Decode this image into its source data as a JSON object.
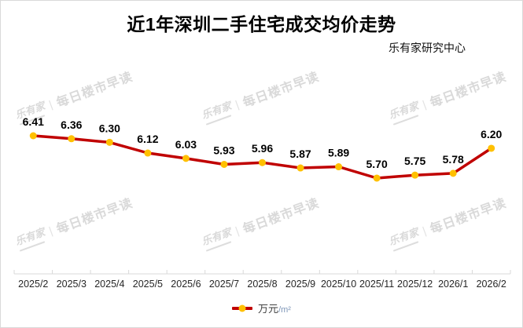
{
  "chart": {
    "title": "近1年深圳二手住宅成交均价走势",
    "source": "乐有家研究中心"
  },
  "legend": {
    "label": "万元/㎡",
    "prefix": "万元",
    "suffix": "/m²"
  },
  "watermark": {
    "logo": "乐有家",
    "divider": "|",
    "text": "每日楼市早读"
  },
  "chart_data": {
    "type": "line",
    "title": "近1年深圳二手住宅成交均价走势",
    "source_label": "乐有家研究中心",
    "categories": [
      "2025/2",
      "2025/3",
      "2025/4",
      "2025/5",
      "2025/6",
      "2025/7",
      "2025/8",
      "2025/9",
      "2025/10",
      "2025/11",
      "2025/12",
      "2026/1",
      "2026/2"
    ],
    "series": [
      {
        "name": "万元/㎡",
        "values": [
          6.41,
          6.36,
          6.3,
          6.12,
          6.03,
          5.93,
          5.96,
          5.87,
          5.89,
          5.7,
          5.75,
          5.78,
          6.2
        ]
      }
    ],
    "xlabel": "",
    "ylabel": "",
    "ylim": [
      5.55,
      6.55
    ],
    "grid": false,
    "data_labels": true,
    "legend_position": "bottom",
    "colors": {
      "line": "#C00000",
      "marker": "#FFC000",
      "axis": "#D9D9D9",
      "tick_label": "#262626",
      "data_label": "#000000",
      "watermark": "#D9D9D9"
    }
  }
}
